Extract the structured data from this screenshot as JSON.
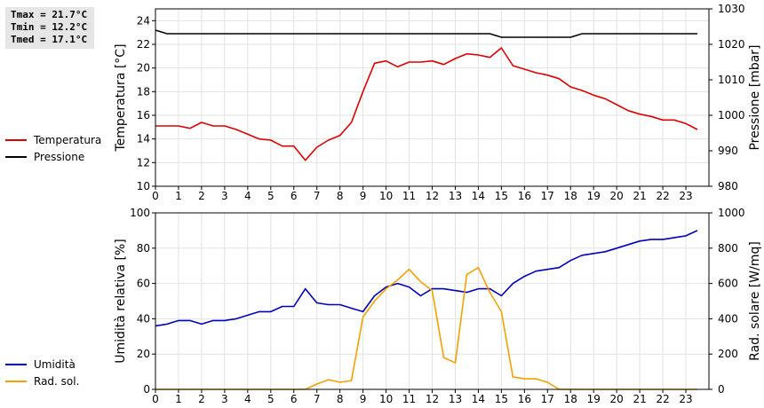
{
  "stats": {
    "tmax": "Tmax = 21.7°C",
    "tmin": "Tmin = 12.2°C",
    "tmed": "Tmed = 17.1°C"
  },
  "chart_data": [
    {
      "type": "line",
      "xlabel": "",
      "ylabel": "Temperatura [°C]",
      "y2label": "Pressione [mbar]",
      "xlim": [
        0,
        24
      ],
      "ylim": [
        10,
        25
      ],
      "y2lim": [
        980,
        1030
      ],
      "yticks": [
        10,
        12,
        14,
        16,
        18,
        20,
        22,
        24
      ],
      "y2ticks": [
        980,
        990,
        1000,
        1010,
        1020,
        1030
      ],
      "xticks": [
        0,
        1,
        2,
        3,
        4,
        5,
        6,
        7,
        8,
        9,
        10,
        11,
        12,
        13,
        14,
        15,
        16,
        17,
        18,
        19,
        20,
        21,
        22,
        23
      ],
      "grid": true,
      "legend_position": "left",
      "series": [
        {
          "name": "Temperatura",
          "color": "#dd0000",
          "axis": "left",
          "x": [
            0,
            0.5,
            1,
            1.5,
            2,
            2.5,
            3,
            3.5,
            4,
            4.5,
            5,
            5.5,
            6,
            6.5,
            7,
            7.5,
            8,
            8.5,
            9,
            9.5,
            10,
            10.5,
            11,
            11.5,
            12,
            12.5,
            13,
            13.5,
            14,
            14.5,
            15,
            15.5,
            16,
            16.5,
            17,
            17.5,
            18,
            18.5,
            19,
            19.5,
            20,
            20.5,
            21,
            21.5,
            22,
            22.5,
            23,
            23.5
          ],
          "values": [
            15.1,
            15.1,
            15.1,
            14.9,
            15.4,
            15.1,
            15.1,
            14.8,
            14.4,
            14.0,
            13.9,
            13.4,
            13.4,
            12.2,
            13.3,
            13.9,
            14.3,
            15.4,
            18.0,
            20.4,
            20.6,
            20.1,
            20.5,
            20.5,
            20.6,
            20.3,
            20.8,
            21.2,
            21.1,
            20.9,
            21.7,
            20.2,
            19.9,
            19.6,
            19.4,
            19.1,
            18.4,
            18.1,
            17.7,
            17.4,
            16.9,
            16.4,
            16.1,
            15.9,
            15.6,
            15.6,
            15.3,
            14.8
          ]
        },
        {
          "name": "Pressione",
          "color": "#000000",
          "axis": "right",
          "x": [
            0,
            0.5,
            1,
            1.5,
            2,
            2.5,
            3,
            3.5,
            4,
            4.5,
            5,
            5.5,
            6,
            6.5,
            7,
            7.5,
            8,
            8.5,
            9,
            9.5,
            10,
            10.5,
            11,
            11.5,
            12,
            12.5,
            13,
            13.5,
            14,
            14.5,
            15,
            15.5,
            16,
            16.5,
            17,
            17.5,
            18,
            18.5,
            19,
            19.5,
            20,
            20.5,
            21,
            21.5,
            22,
            22.5,
            23,
            23.5
          ],
          "values": [
            1024,
            1023,
            1023,
            1023,
            1023,
            1023,
            1023,
            1023,
            1023,
            1023,
            1023,
            1023,
            1023,
            1023,
            1023,
            1023,
            1023,
            1023,
            1023,
            1023,
            1023,
            1023,
            1023,
            1023,
            1023,
            1023,
            1023,
            1023,
            1023,
            1023,
            1022,
            1022,
            1022,
            1022,
            1022,
            1022,
            1022,
            1023,
            1023,
            1023,
            1023,
            1023,
            1023,
            1023,
            1023,
            1023,
            1023,
            1023
          ]
        }
      ]
    },
    {
      "type": "line",
      "xlabel": "",
      "ylabel": "Umidità relativa [%]",
      "y2label": "Rad. solare [W/mq]",
      "xlim": [
        0,
        24
      ],
      "ylim": [
        0,
        100
      ],
      "y2lim": [
        0,
        1000
      ],
      "yticks": [
        0,
        20,
        40,
        60,
        80,
        100
      ],
      "y2ticks": [
        0,
        200,
        400,
        600,
        800,
        1000
      ],
      "xticks": [
        0,
        1,
        2,
        3,
        4,
        5,
        6,
        7,
        8,
        9,
        10,
        11,
        12,
        13,
        14,
        15,
        16,
        17,
        18,
        19,
        20,
        21,
        22,
        23
      ],
      "grid": true,
      "legend_position": "left",
      "series": [
        {
          "name": "Umidità",
          "color": "#0000bb",
          "axis": "left",
          "x": [
            0,
            0.5,
            1,
            1.5,
            2,
            2.5,
            3,
            3.5,
            4,
            4.5,
            5,
            5.5,
            6,
            6.5,
            7,
            7.5,
            8,
            8.5,
            9,
            9.5,
            10,
            10.5,
            11,
            11.5,
            12,
            12.5,
            13,
            13.5,
            14,
            14.5,
            15,
            15.5,
            16,
            16.5,
            17,
            17.5,
            18,
            18.5,
            19,
            19.5,
            20,
            20.5,
            21,
            21.5,
            22,
            22.5,
            23,
            23.5
          ],
          "values": [
            36,
            37,
            39,
            39,
            37,
            39,
            39,
            40,
            42,
            44,
            44,
            47,
            47,
            57,
            49,
            48,
            48,
            46,
            44,
            53,
            58,
            60,
            58,
            53,
            57,
            57,
            56,
            55,
            57,
            57,
            53,
            60,
            64,
            67,
            68,
            69,
            73,
            76,
            77,
            78,
            80,
            82,
            84,
            85,
            85,
            86,
            87,
            90
          ]
        },
        {
          "name": "Rad. sol.",
          "color": "#f5a000",
          "axis": "right",
          "x": [
            0,
            0.5,
            1,
            1.5,
            2,
            2.5,
            3,
            3.5,
            4,
            4.5,
            5,
            5.5,
            6,
            6.5,
            7,
            7.5,
            8,
            8.5,
            9,
            9.5,
            10,
            10.5,
            11,
            11.5,
            12,
            12.5,
            13,
            13.5,
            14,
            14.5,
            15,
            15.5,
            16,
            16.5,
            17,
            17.5,
            18,
            18.5,
            19,
            19.5,
            20,
            20.5,
            21,
            21.5,
            22,
            22.5,
            23,
            23.5
          ],
          "values": [
            0,
            0,
            0,
            0,
            0,
            0,
            0,
            0,
            0,
            0,
            0,
            0,
            0,
            0,
            30,
            55,
            40,
            50,
            410,
            500,
            570,
            620,
            680,
            610,
            560,
            180,
            150,
            650,
            690,
            550,
            440,
            70,
            60,
            60,
            40,
            0,
            0,
            0,
            0,
            0,
            0,
            0,
            0,
            0,
            0,
            0,
            0,
            0
          ]
        }
      ]
    }
  ]
}
